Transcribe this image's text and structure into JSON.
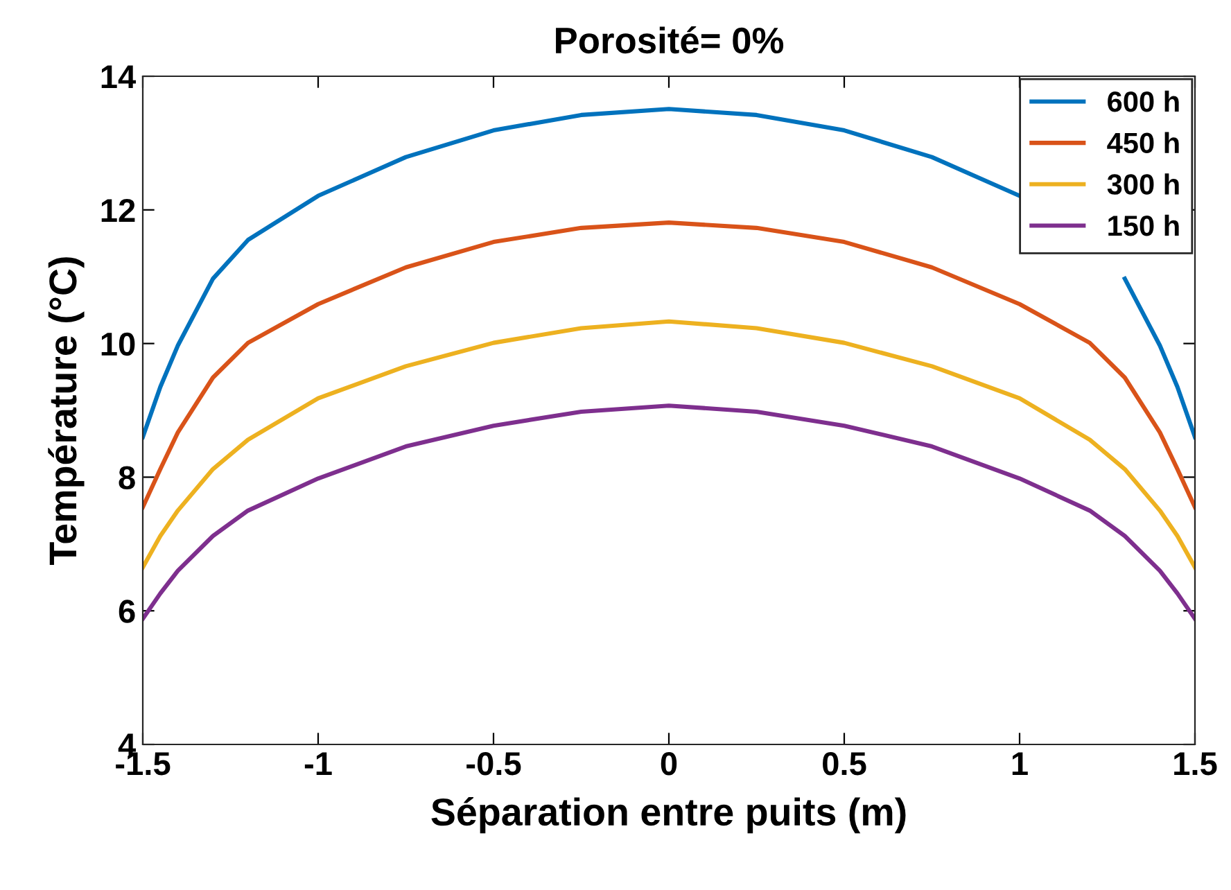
{
  "chart_data": {
    "type": "line",
    "title": "Porosité= 0%",
    "xlabel": "Séparation entre puits (m)",
    "ylabel": "Température (°C)",
    "x": [
      -1.5,
      -1.45,
      -1.4,
      -1.3,
      -1.2,
      -1,
      -0.75,
      -0.5,
      -0.25,
      0,
      0.25,
      0.5,
      0.75,
      1,
      1.2,
      1.3,
      1.4,
      1.45,
      1.5
    ],
    "series": [
      {
        "name": "600 h",
        "color": "#0072bd",
        "values": [
          8.6,
          9.35,
          9.97,
          10.97,
          11.55,
          12.21,
          12.79,
          13.19,
          13.42,
          13.51,
          13.42,
          13.19,
          12.79,
          12.21,
          null,
          10.97,
          9.97,
          9.35,
          8.6
        ]
      },
      {
        "name": "450 h",
        "color": "#d95319",
        "values": [
          7.55,
          8.12,
          8.67,
          9.49,
          10.01,
          10.59,
          11.14,
          11.52,
          11.73,
          11.81,
          11.73,
          11.52,
          11.14,
          10.59,
          10.01,
          9.49,
          8.67,
          8.12,
          7.55
        ]
      },
      {
        "name": "300 h",
        "color": "#edb120",
        "values": [
          6.65,
          7.12,
          7.5,
          8.12,
          8.56,
          9.18,
          9.66,
          10.01,
          10.23,
          10.33,
          10.23,
          10.01,
          9.66,
          9.18,
          8.56,
          8.12,
          7.5,
          7.12,
          6.65
        ]
      },
      {
        "name": "150 h",
        "color": "#7e2f8e",
        "values": [
          5.88,
          6.26,
          6.6,
          7.12,
          7.5,
          7.98,
          8.46,
          8.77,
          8.98,
          9.07,
          8.98,
          8.77,
          8.46,
          7.98,
          7.5,
          7.12,
          6.6,
          6.26,
          5.88
        ]
      }
    ],
    "xlim": [
      -1.5,
      1.5
    ],
    "xticks": [
      -1.5,
      -1,
      -0.5,
      0,
      0.5,
      1,
      1.5
    ],
    "ylim": [
      4,
      14
    ],
    "yticks": [
      4,
      6,
      8,
      10,
      12,
      14
    ],
    "grid": false,
    "legend": "top right",
    "marker": "none",
    "line_style": "solid"
  }
}
